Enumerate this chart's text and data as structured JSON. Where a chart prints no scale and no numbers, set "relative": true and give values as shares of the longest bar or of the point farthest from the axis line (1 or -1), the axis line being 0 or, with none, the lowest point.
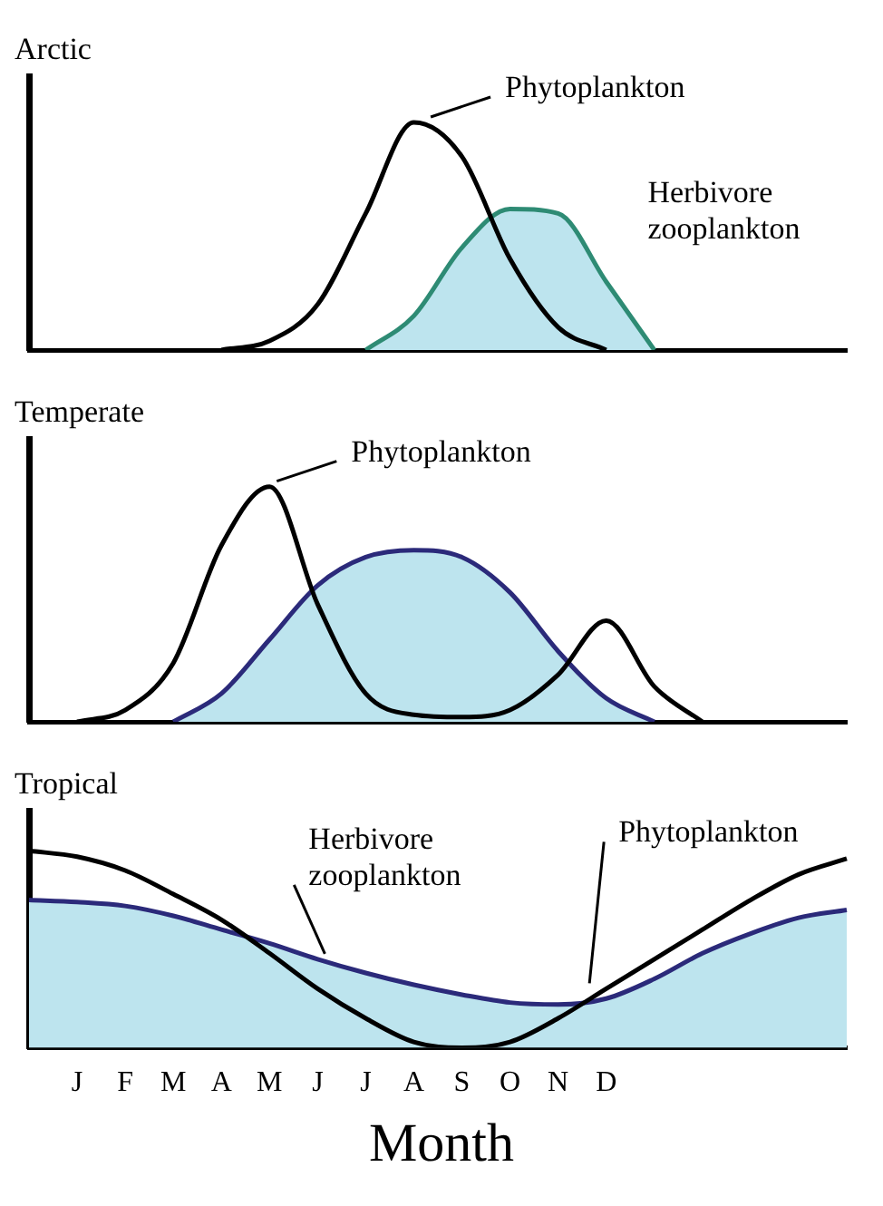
{
  "chart_data": [
    {
      "type": "line",
      "title": "Arctic",
      "relative": true,
      "tick_labels": false,
      "categories": [
        null,
        null,
        null,
        null,
        null,
        null,
        null,
        null,
        null,
        null,
        null,
        null,
        null,
        null,
        null,
        null,
        null,
        null
      ],
      "series": [
        {
          "name": "Herbivore zooplankton",
          "type": "area",
          "color": "#bde4ee",
          "values": [
            null,
            null,
            null,
            null,
            null,
            null,
            null,
            0,
            0.15,
            0.45,
            0.62,
            0.6,
            0.3,
            0,
            null,
            null,
            null,
            null
          ]
        },
        {
          "name": "Phytoplankton",
          "color": "#000000",
          "values": [
            null,
            null,
            null,
            null,
            0,
            0.04,
            0.2,
            0.6,
            1.0,
            0.85,
            0.4,
            0.1,
            0,
            null,
            null,
            null,
            null,
            null
          ]
        }
      ]
    },
    {
      "type": "line",
      "title": "Temperate",
      "relative": true,
      "tick_labels": false,
      "categories": [
        null,
        null,
        null,
        null,
        null,
        null,
        null,
        null,
        null,
        null,
        null,
        null,
        null,
        null,
        null,
        null,
        null,
        null
      ],
      "series": [
        {
          "type": "area",
          "color": "#bde4ee",
          "values": [
            null,
            null,
            null,
            0,
            0.12,
            0.35,
            0.58,
            0.7,
            0.73,
            0.7,
            0.55,
            0.3,
            0.1,
            0,
            null,
            null,
            null,
            null
          ]
        },
        {
          "name": "Phytoplankton",
          "color": "#000000",
          "values": [
            null,
            0,
            0.05,
            0.25,
            0.75,
            1.0,
            0.5,
            0.12,
            0.03,
            0.02,
            0.05,
            0.2,
            0.43,
            0.15,
            0,
            null,
            null,
            null
          ]
        }
      ]
    },
    {
      "type": "line",
      "title": "Tropical",
      "xlabel": "Month",
      "relative": true,
      "tick_labels": "x",
      "categories": [
        null,
        "J",
        "F",
        "M",
        "A",
        "M",
        "J",
        "J",
        "A",
        "S",
        "O",
        "N",
        "D",
        null,
        null,
        null,
        null,
        null
      ],
      "series": [
        {
          "name": "Herbivore zooplankton",
          "type": "area",
          "color": "#bde4ee",
          "values": [
            0.75,
            0.74,
            0.72,
            0.67,
            0.6,
            0.53,
            0.45,
            0.38,
            0.32,
            0.27,
            0.23,
            0.22,
            0.25,
            0.35,
            0.48,
            0.58,
            0.66,
            0.7
          ]
        },
        {
          "name": "Phytoplankton",
          "color": "#000000",
          "values": [
            1.0,
            0.97,
            0.9,
            0.78,
            0.65,
            0.48,
            0.3,
            0.15,
            0.03,
            0,
            0.03,
            0.15,
            0.3,
            0.45,
            0.6,
            0.75,
            0.88,
            0.96
          ]
        }
      ]
    }
  ]
}
